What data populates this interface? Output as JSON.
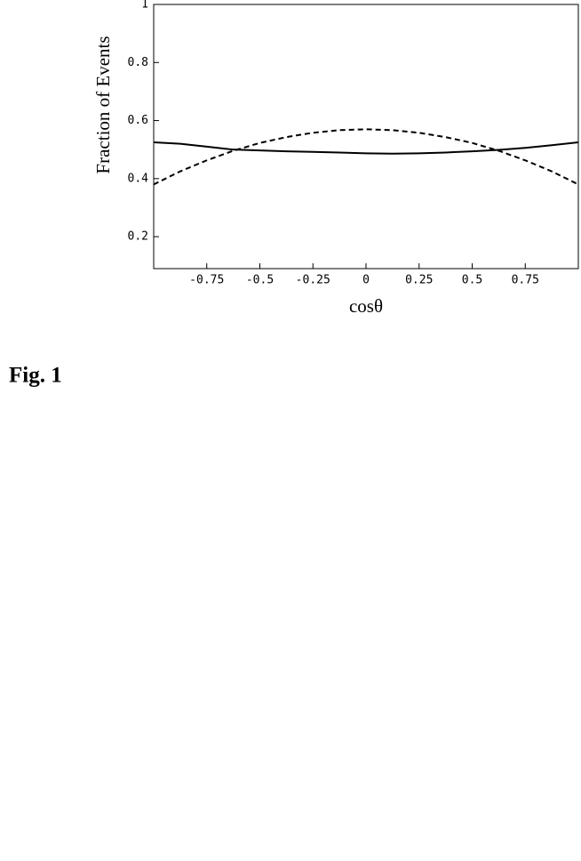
{
  "chart_data": {
    "type": "line",
    "xlabel": "cosθ",
    "ylabel": "Fraction of Events",
    "x": [
      -1,
      -0.875,
      -0.75,
      -0.625,
      -0.5,
      -0.375,
      -0.25,
      -0.125,
      0,
      0.125,
      0.25,
      0.375,
      0.5,
      0.625,
      0.75,
      0.875,
      1
    ],
    "series": [
      {
        "color": "#000000",
        "style": "solid",
        "values": [
          0.525,
          0.52,
          0.51,
          0.5,
          0.497,
          0.494,
          0.492,
          0.49,
          0.487,
          0.486,
          0.487,
          0.49,
          0.494,
          0.499,
          0.506,
          0.515,
          0.525
        ]
      },
      {
        "color": "#000000",
        "style": "dashed",
        "values": [
          0.38,
          0.425,
          0.463,
          0.496,
          0.523,
          0.543,
          0.558,
          0.567,
          0.57,
          0.567,
          0.558,
          0.543,
          0.523,
          0.496,
          0.463,
          0.425,
          0.38
        ]
      }
    ],
    "xlim": [
      -1,
      1
    ],
    "ylim": [
      0.09,
      1
    ],
    "xticks": [
      -0.75,
      -0.5,
      -0.25,
      0,
      0.25,
      0.5,
      0.75
    ],
    "yticks": [
      0.2,
      0.4,
      0.6,
      0.8,
      1
    ],
    "grid": false
  },
  "caption": "Fig. 1"
}
